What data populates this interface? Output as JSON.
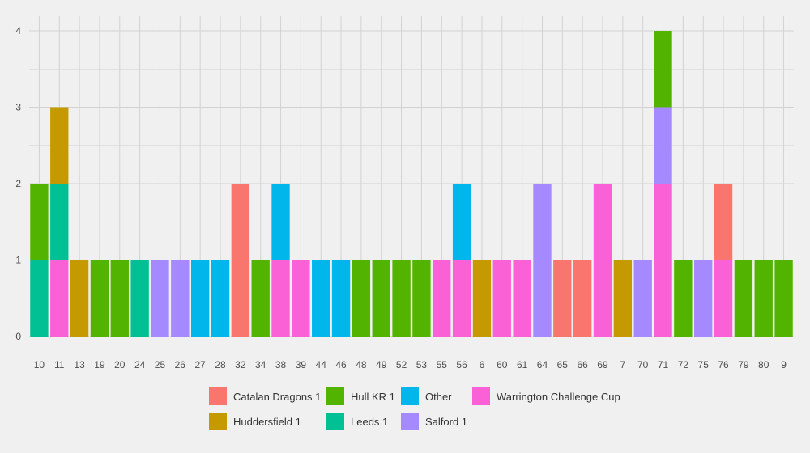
{
  "chart_data": {
    "type": "bar",
    "stacked": true,
    "title": "",
    "xlabel": "",
    "ylabel": "",
    "ylim": [
      0,
      4.15
    ],
    "yticks": [
      0,
      1,
      2,
      3,
      4
    ],
    "grid": true,
    "legend_position": "bottom",
    "categories": [
      "10",
      "11",
      "13",
      "19",
      "20",
      "24",
      "25",
      "26",
      "27",
      "28",
      "32",
      "34",
      "38",
      "39",
      "44",
      "46",
      "48",
      "49",
      "52",
      "53",
      "55",
      "56",
      "6",
      "60",
      "61",
      "64",
      "65",
      "66",
      "69",
      "7",
      "70",
      "71",
      "72",
      "75",
      "76",
      "79",
      "80",
      "9"
    ],
    "series": [
      {
        "name": "Catalan Dragons 1",
        "color": "#F8766D",
        "values": [
          0,
          0,
          0,
          0,
          0,
          0,
          0,
          0,
          0,
          0,
          2,
          0,
          0,
          0,
          0,
          0,
          0,
          0,
          0,
          0,
          0,
          0,
          0,
          0,
          0,
          0,
          1,
          1,
          0,
          0,
          0,
          0,
          0,
          0,
          1,
          0,
          0,
          0
        ]
      },
      {
        "name": "Huddersfield 1",
        "color": "#C49A00",
        "values": [
          0,
          1,
          1,
          0,
          0,
          0,
          0,
          0,
          0,
          0,
          0,
          0,
          0,
          0,
          0,
          0,
          0,
          0,
          0,
          0,
          0,
          0,
          1,
          0,
          0,
          0,
          0,
          0,
          0,
          1,
          0,
          0,
          0,
          0,
          0,
          0,
          0,
          0
        ]
      },
      {
        "name": "Hull KR 1",
        "color": "#53B400",
        "values": [
          1,
          0,
          0,
          1,
          1,
          0,
          0,
          0,
          0,
          0,
          0,
          1,
          0,
          0,
          0,
          0,
          1,
          1,
          1,
          1,
          0,
          0,
          0,
          0,
          0,
          0,
          0,
          0,
          0,
          0,
          0,
          1,
          1,
          0,
          0,
          1,
          1,
          1
        ]
      },
      {
        "name": "Leeds 1",
        "color": "#00C094",
        "values": [
          1,
          1,
          0,
          0,
          0,
          1,
          0,
          0,
          0,
          0,
          0,
          0,
          0,
          0,
          0,
          0,
          0,
          0,
          0,
          0,
          0,
          0,
          0,
          0,
          0,
          0,
          0,
          0,
          0,
          0,
          0,
          0,
          0,
          0,
          0,
          0,
          0,
          0
        ]
      },
      {
        "name": "Other",
        "color": "#00B6EB",
        "values": [
          0,
          0,
          0,
          0,
          0,
          0,
          0,
          0,
          1,
          1,
          0,
          0,
          1,
          0,
          1,
          1,
          0,
          0,
          0,
          0,
          0,
          1,
          0,
          0,
          0,
          0,
          0,
          0,
          0,
          0,
          0,
          0,
          0,
          0,
          0,
          0,
          0,
          0
        ]
      },
      {
        "name": "Salford 1",
        "color": "#A58AFF",
        "values": [
          0,
          0,
          0,
          0,
          0,
          0,
          1,
          1,
          0,
          0,
          0,
          0,
          0,
          0,
          0,
          0,
          0,
          0,
          0,
          0,
          0,
          0,
          0,
          0,
          0,
          2,
          0,
          0,
          0,
          0,
          1,
          1,
          0,
          1,
          0,
          0,
          0,
          0
        ]
      },
      {
        "name": "Warrington Challenge Cup",
        "color": "#FB61D7",
        "values": [
          0,
          1,
          0,
          0,
          0,
          0,
          0,
          0,
          0,
          0,
          0,
          0,
          1,
          1,
          0,
          0,
          0,
          0,
          0,
          0,
          1,
          1,
          0,
          1,
          1,
          0,
          0,
          0,
          2,
          0,
          0,
          2,
          0,
          0,
          1,
          0,
          0,
          0
        ]
      }
    ],
    "legend": {
      "row1": [
        "Catalan Dragons 1",
        "Hull KR 1",
        "Other",
        "Warrington Challenge Cup"
      ],
      "row2": [
        "Huddersfield 1",
        "Leeds 1",
        "Salford 1"
      ]
    }
  }
}
